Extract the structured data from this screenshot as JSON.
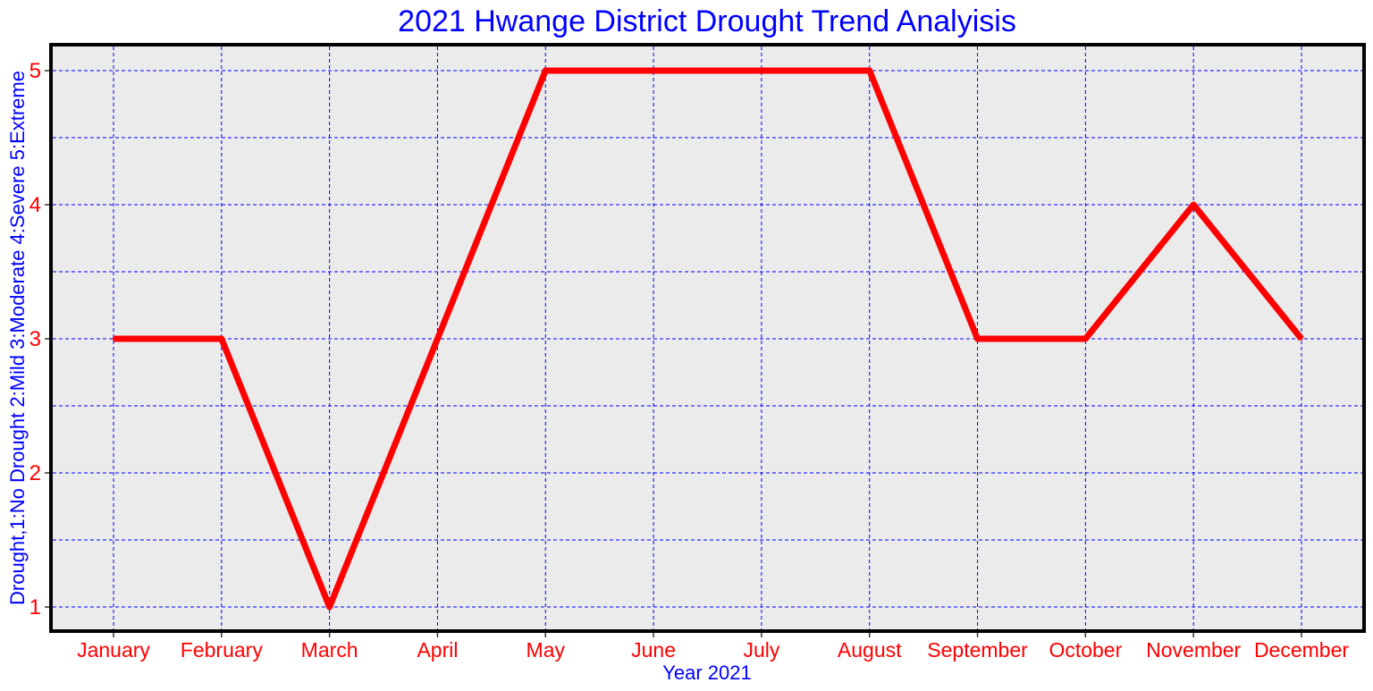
{
  "chart_data": {
    "type": "line",
    "title": "2021 Hwange District Drought Trend Analyisis",
    "xlabel": "Year 2021",
    "ylabel": "Drought,1:No Drought 2:Mild 3:Moderate 4:Severe 5:Extreme",
    "categories": [
      "January",
      "February",
      "March",
      "April",
      "May",
      "June",
      "July",
      "August",
      "September",
      "October",
      "November",
      "December"
    ],
    "series": [
      {
        "values": [
          3,
          3,
          1,
          3,
          5,
          5,
          5,
          5,
          3,
          3,
          4,
          3
        ]
      }
    ],
    "ylim": [
      0.8,
      5.2
    ],
    "yticks": [
      "1",
      "2",
      "3",
      "4",
      "5"
    ],
    "grid": true,
    "colors": {
      "title": "#0000ff",
      "axis_label": "#0000ff",
      "tick_label": "#ff0000",
      "line": "#ff0000",
      "grid": "#0000ff",
      "panel": "#ebebeb",
      "border": "#000000"
    }
  }
}
